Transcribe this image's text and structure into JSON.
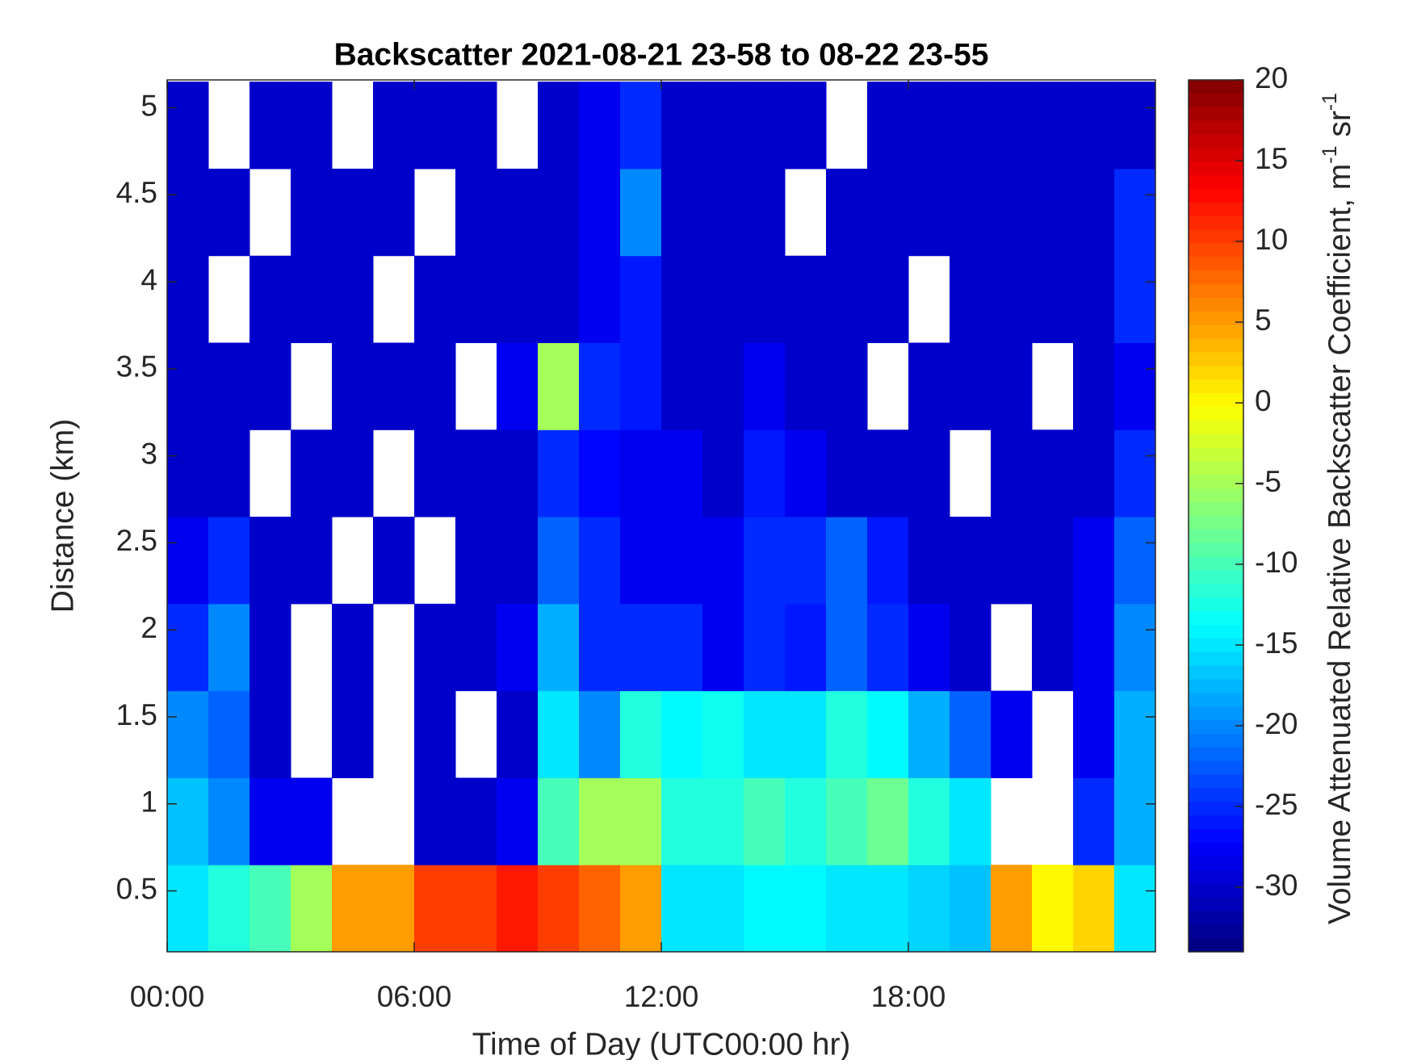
{
  "chart_data": {
    "type": "heatmap",
    "title": "Backscatter 2021-08-21 23-58 to 08-22 23-55",
    "x_label": "Time of Day (UTC00:00 hr)",
    "y_label": "Distance (km)",
    "colorbar_label": [
      "Volume Attenuated Relative Backscatter Coefficient, m",
      "-1",
      " sr",
      "-1"
    ],
    "colormap": "jet",
    "xlim": [
      0,
      24
    ],
    "xticks": [
      {
        "value": 0,
        "label": "00:00"
      },
      {
        "value": 6,
        "label": "06:00"
      },
      {
        "value": 12,
        "label": "12:00"
      },
      {
        "value": 18,
        "label": "18:00"
      }
    ],
    "ylim": [
      0.15,
      5.16
    ],
    "yticks": [
      0.5,
      1,
      1.5,
      2,
      2.5,
      3,
      3.5,
      4,
      4.5,
      5
    ],
    "clim": [
      -34,
      20
    ],
    "cticks": [
      -30,
      -25,
      -20,
      -15,
      -10,
      -5,
      0,
      5,
      10,
      15,
      20
    ],
    "x": [
      0.5,
      1.5,
      2.5,
      3.5,
      4.5,
      5.5,
      6.5,
      7.5,
      8.5,
      9.5,
      10.5,
      11.5,
      12.5,
      13.5,
      14.5,
      15.5,
      16.5,
      17.5,
      18.5,
      19.5,
      20.5,
      21.5,
      22.5,
      23.5
    ],
    "y": [
      0.4,
      0.9,
      1.4,
      1.9,
      2.4,
      2.9,
      3.4,
      3.9,
      4.4,
      4.9
    ],
    "z": [
      [
        -15,
        -12,
        -10,
        -5,
        5,
        5,
        10,
        10,
        12,
        10,
        8,
        5,
        -15,
        -15,
        -14,
        -14,
        -15,
        -15,
        -16,
        -17,
        5,
        0,
        2,
        -15
      ],
      [
        -17,
        -20,
        -28,
        -28,
        null,
        null,
        -30,
        -30,
        -28,
        -10,
        -5,
        -5,
        -12,
        -12,
        -10,
        -12,
        -10,
        -8,
        -12,
        -15,
        null,
        null,
        -25,
        -18
      ],
      [
        -20,
        -22,
        -30,
        null,
        -30,
        null,
        -30,
        null,
        -30,
        -15,
        -20,
        -12,
        -14,
        -13,
        -15,
        -15,
        -12,
        -14,
        -18,
        -22,
        -28,
        null,
        -28,
        -18
      ],
      [
        -25,
        -20,
        -30,
        null,
        -30,
        null,
        -30,
        -30,
        -28,
        -18,
        -25,
        -25,
        -25,
        -28,
        -25,
        -26,
        -22,
        -25,
        -28,
        -30,
        null,
        -30,
        -28,
        -20
      ],
      [
        -28,
        -25,
        -30,
        -30,
        null,
        -30,
        null,
        -30,
        -30,
        -22,
        -25,
        -28,
        -28,
        -28,
        -25,
        -25,
        -22,
        -26,
        -30,
        -30,
        -30,
        -30,
        -28,
        -22
      ],
      [
        -30,
        -30,
        null,
        -30,
        -30,
        null,
        -30,
        -30,
        -30,
        -25,
        -27,
        -28,
        -28,
        -30,
        -26,
        -28,
        -30,
        -30,
        -30,
        null,
        -30,
        -30,
        -30,
        -25
      ],
      [
        -30,
        -30,
        -30,
        null,
        -30,
        -30,
        -30,
        null,
        -28,
        -5,
        -25,
        -26,
        -30,
        -30,
        -28,
        -30,
        -30,
        null,
        -30,
        -30,
        -30,
        null,
        -30,
        -28
      ],
      [
        -30,
        null,
        -30,
        -30,
        -30,
        null,
        -30,
        -30,
        -30,
        -30,
        -28,
        -26,
        -30,
        -30,
        -30,
        -30,
        -30,
        -30,
        null,
        -30,
        -30,
        -30,
        -30,
        -25
      ],
      [
        -30,
        -30,
        null,
        -30,
        -30,
        -30,
        null,
        -30,
        -30,
        -30,
        -28,
        -20,
        -30,
        -30,
        -30,
        null,
        -30,
        -30,
        -30,
        -30,
        -30,
        -30,
        -30,
        -25
      ],
      [
        -30,
        null,
        -30,
        -30,
        null,
        -30,
        -30,
        -30,
        null,
        -30,
        -28,
        -25,
        -30,
        -30,
        -30,
        -30,
        null,
        -30,
        -30,
        -30,
        -30,
        -30,
        -30,
        -30
      ]
    ]
  }
}
